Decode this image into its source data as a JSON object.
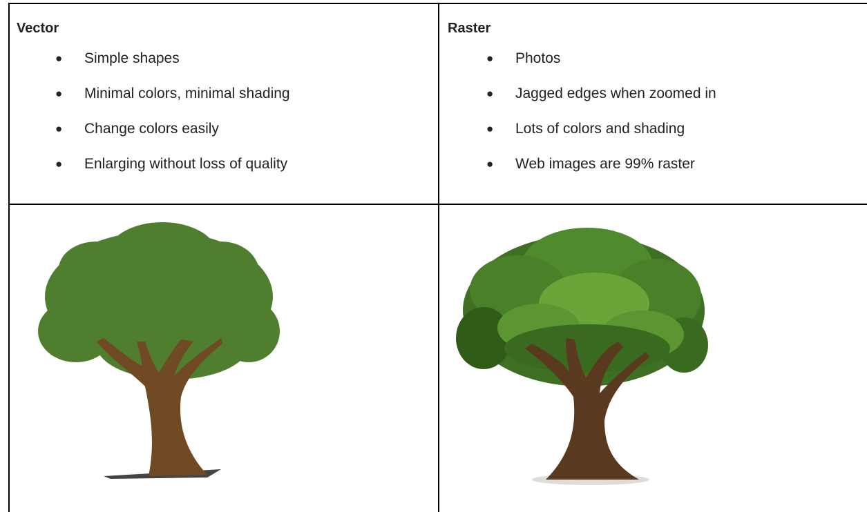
{
  "table": {
    "columns": [
      {
        "title": "Vector",
        "items": [
          "Simple shapes",
          "Minimal colors, minimal shading",
          "Change colors easily",
          "Enlarging without loss of quality"
        ]
      },
      {
        "title": "Raster",
        "items": [
          "Photos",
          "Jagged edges when zoomed in",
          "Lots of colors and shading",
          "Web images are 99% raster"
        ]
      }
    ]
  }
}
